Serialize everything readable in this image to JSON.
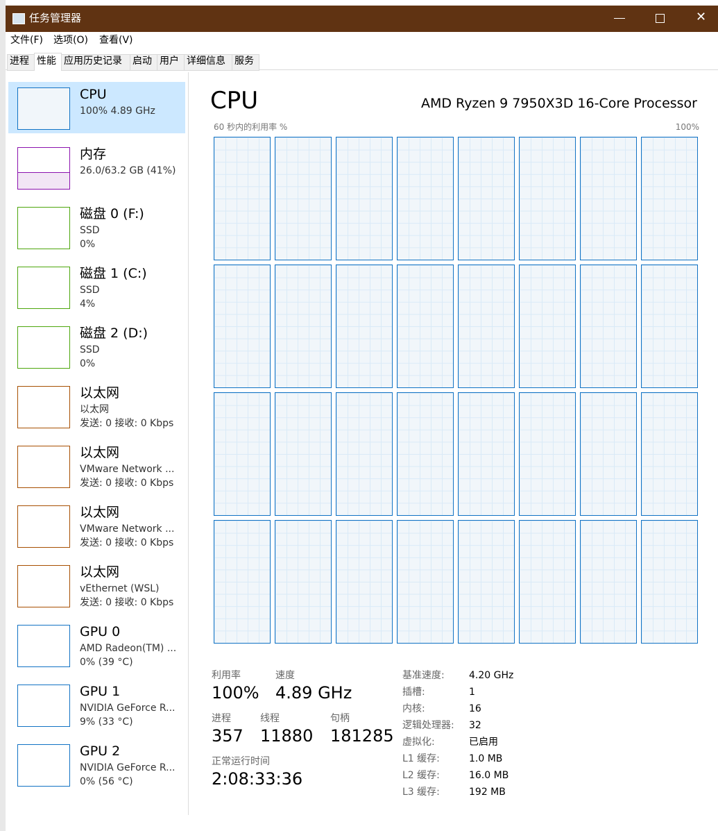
{
  "window": {
    "title": "任务管理器"
  },
  "menu": [
    "文件(F)",
    "选项(O)",
    "查看(V)"
  ],
  "tabs": [
    "进程",
    "性能",
    "应用历史记录",
    "启动",
    "用户",
    "详细信息",
    "服务"
  ],
  "sidebar": [
    {
      "name": "CPU",
      "lines": [
        "100% 4.89 GHz"
      ]
    },
    {
      "name": "内存",
      "lines": [
        "26.0/63.2 GB (41%)"
      ]
    },
    {
      "name": "磁盘 0 (F:)",
      "lines": [
        "SSD",
        "0%"
      ]
    },
    {
      "name": "磁盘 1 (C:)",
      "lines": [
        "SSD",
        "4%"
      ]
    },
    {
      "name": "磁盘 2 (D:)",
      "lines": [
        "SSD",
        "0%"
      ]
    },
    {
      "name": "以太网",
      "lines": [
        "以太网",
        "发送: 0 接收: 0 Kbps"
      ]
    },
    {
      "name": "以太网",
      "lines": [
        "VMware Network ...",
        "发送: 0 接收: 0 Kbps"
      ]
    },
    {
      "name": "以太网",
      "lines": [
        "VMware Network ...",
        "发送: 0 接收: 0 Kbps"
      ]
    },
    {
      "name": "以太网",
      "lines": [
        "vEthernet (WSL)",
        "发送: 0 接收: 0 Kbps"
      ]
    },
    {
      "name": "GPU 0",
      "lines": [
        "AMD Radeon(TM) ...",
        "0% (39 °C)"
      ]
    },
    {
      "name": "GPU 1",
      "lines": [
        "NVIDIA GeForce R...",
        "9% (33 °C)"
      ]
    },
    {
      "name": "GPU 2",
      "lines": [
        "NVIDIA GeForce R...",
        "0% (56 °C)"
      ]
    }
  ],
  "main": {
    "title": "CPU",
    "processor": "AMD Ryzen 9 7950X3D 16-Core Processor",
    "graph_label": "60 秒内的利用率 %",
    "graph_max": "100%",
    "stats": [
      {
        "label": "利用率",
        "value": "100%"
      },
      {
        "label": "速度",
        "value": "4.89 GHz"
      },
      {
        "label": "进程",
        "value": "357"
      },
      {
        "label": "线程",
        "value": "11880"
      },
      {
        "label": "句柄",
        "value": "181285"
      },
      {
        "label": "正常运行时间",
        "value": "2:08:33:36"
      }
    ],
    "specs": [
      {
        "label": "基准速度:",
        "value": "4.20 GHz"
      },
      {
        "label": "插槽:",
        "value": "1"
      },
      {
        "label": "内核:",
        "value": "16"
      },
      {
        "label": "逻辑处理器:",
        "value": "32"
      },
      {
        "label": "虚拟化:",
        "value": "已启用"
      },
      {
        "label": "L1 缓存:",
        "value": "1.0 MB"
      },
      {
        "label": "L2 缓存:",
        "value": "16.0 MB"
      },
      {
        "label": "L3 缓存:",
        "value": "192 MB"
      }
    ]
  }
}
